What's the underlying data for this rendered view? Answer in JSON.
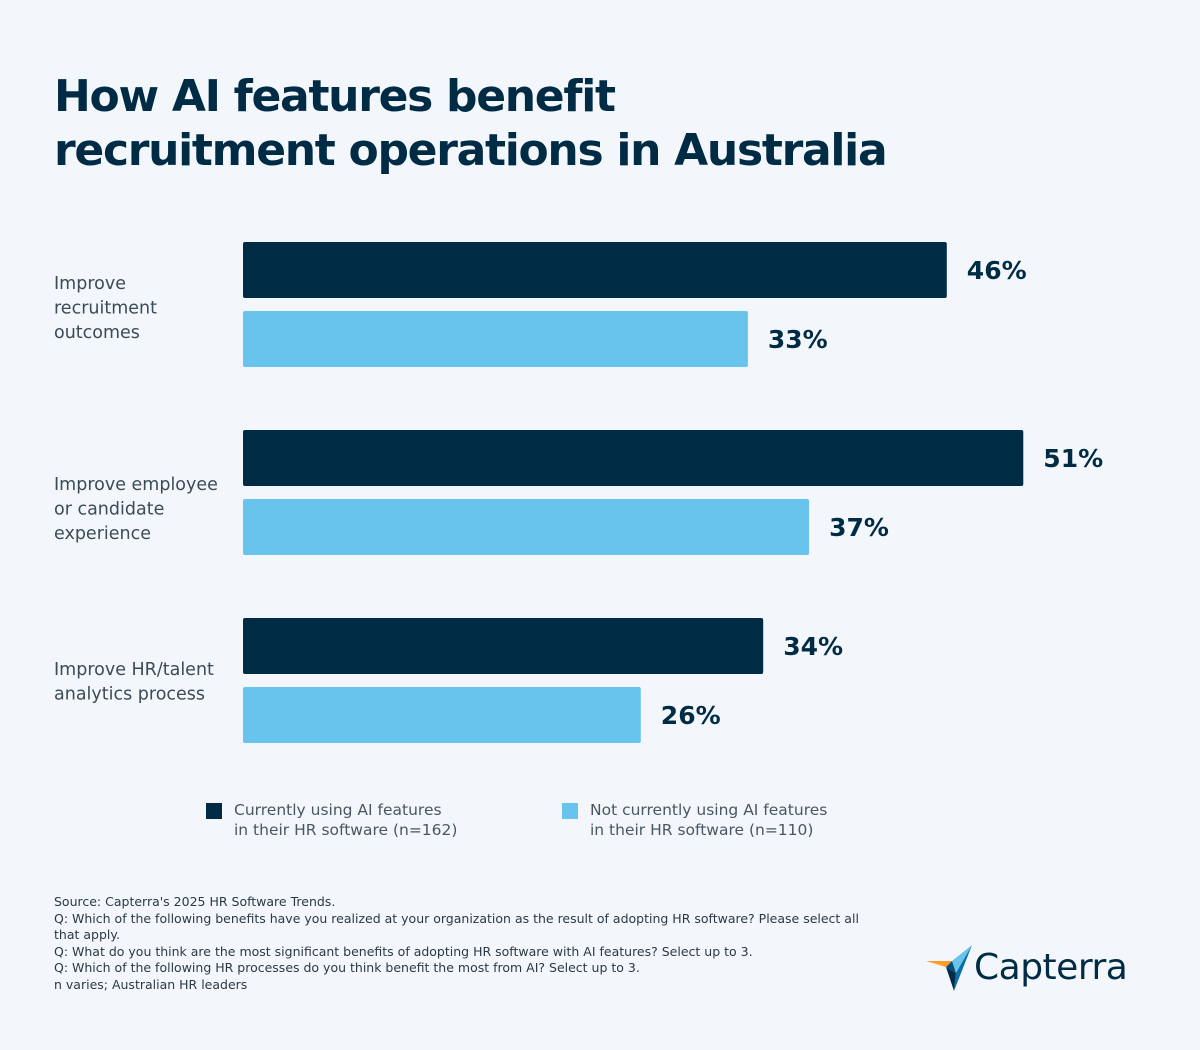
{
  "title": {
    "line1": "How AI features benefit",
    "line2": "recruitment operations in Australia"
  },
  "colors": {
    "background": "#f3f7fc",
    "series_current": "#002b45",
    "series_not_current": "#68c4ec",
    "text": "#002b45"
  },
  "chart_data": {
    "type": "bar",
    "orientation": "horizontal",
    "title": "How AI features benefit recruitment operations in Australia",
    "categories": [
      [
        "Improve",
        "recruitment",
        "outcomes"
      ],
      [
        "Improve employee",
        "or candidate",
        "experience"
      ],
      [
        "Improve HR/talent",
        "analytics process"
      ]
    ],
    "series": [
      {
        "name": "Currently using AI features in their HR software (n=162)",
        "color": "#002b45",
        "values": [
          46,
          51,
          34
        ],
        "labels": [
          "46%",
          "51%",
          "34%"
        ]
      },
      {
        "name": "Not currently using AI features in their HR software (n=110)",
        "color": "#68c4ec",
        "values": [
          33,
          37,
          26
        ],
        "labels": [
          "33%",
          "37%",
          "26%"
        ]
      }
    ],
    "unit": "%",
    "grid": false,
    "legend_position": "bottom"
  },
  "legend": [
    {
      "lines": [
        "Currently using AI features",
        "in their HR software (n=162)"
      ],
      "color": "#002b45"
    },
    {
      "lines": [
        "Not currently using AI features",
        "in their HR software (n=110)"
      ],
      "color": "#68c4ec"
    }
  ],
  "footer": {
    "lines": [
      "Source: Capterra's 2025 HR Software Trends.",
      "Q: Which of the following benefits have you realized at your organization as the result of adopting HR software? Please select all",
      "that apply.",
      "Q: What do you think are the most significant benefits of adopting HR software with AI features? Select up to 3.",
      "Q: Which of the following HR processes do you think benefit the most from AI? Select up to 3.",
      "n varies; Australian HR leaders"
    ]
  },
  "logo": {
    "text": "Capterra",
    "icon": "capterra-arrow-icon"
  }
}
